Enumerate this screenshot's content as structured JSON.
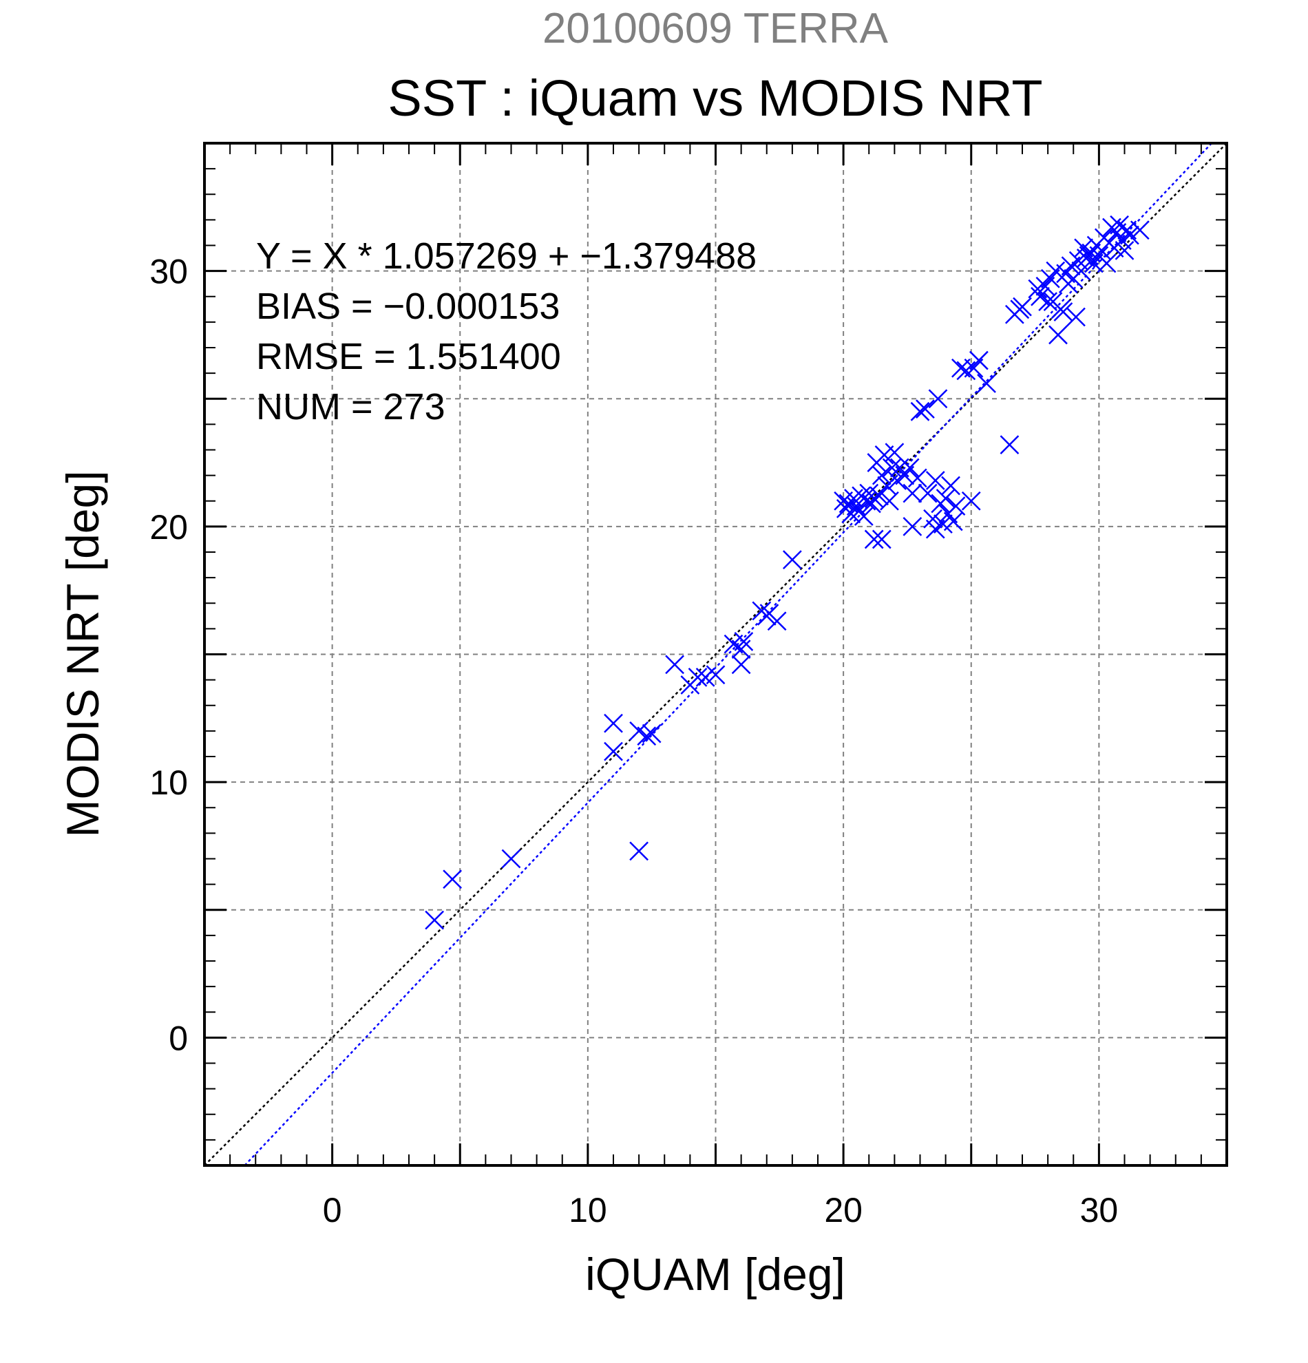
{
  "chart_data": {
    "type": "scatter",
    "suptitle": "20100609 TERRA",
    "title": "SST : iQuam vs MODIS NRT",
    "xlabel": "iQUAM [deg]",
    "ylabel": "MODIS NRT [deg]",
    "xlim": [
      -5,
      35
    ],
    "ylim": [
      -5,
      35
    ],
    "xticks": [
      0,
      10,
      20,
      30
    ],
    "yticks": [
      0,
      10,
      20,
      30
    ],
    "grid": true,
    "stats": [
      "Y = X * 1.057269 + −1.379488",
      "BIAS = −0.000153",
      "RMSE = 1.551400",
      "NUM = 273"
    ],
    "marker": "x",
    "point_color": "#0000ff",
    "lines": [
      {
        "kind": "identity",
        "slope": 1,
        "intercept": 0,
        "color": "#000000",
        "style": "dotted"
      },
      {
        "kind": "regression",
        "slope": 1.057269,
        "intercept": -1.379488,
        "color": "#0000ff",
        "style": "dotted"
      }
    ],
    "points": [
      [
        4.0,
        4.6
      ],
      [
        4.7,
        6.2
      ],
      [
        7.0,
        7.0
      ],
      [
        11.0,
        12.3
      ],
      [
        11.0,
        11.2
      ],
      [
        12.0,
        7.3
      ],
      [
        12.0,
        12.0
      ],
      [
        12.3,
        11.8
      ],
      [
        12.5,
        11.9
      ],
      [
        13.4,
        14.6
      ],
      [
        14.0,
        13.8
      ],
      [
        14.3,
        14.1
      ],
      [
        14.6,
        14.1
      ],
      [
        15.0,
        14.2
      ],
      [
        15.7,
        15.4
      ],
      [
        16.0,
        15.2
      ],
      [
        16.0,
        14.6
      ],
      [
        16.1,
        15.5
      ],
      [
        16.8,
        16.7
      ],
      [
        17.0,
        16.5
      ],
      [
        17.1,
        16.6
      ],
      [
        17.4,
        16.3
      ],
      [
        18.0,
        18.7
      ],
      [
        20.0,
        21.0
      ],
      [
        20.1,
        20.7
      ],
      [
        20.2,
        20.9
      ],
      [
        20.3,
        20.5
      ],
      [
        20.4,
        21.1
      ],
      [
        20.5,
        20.8
      ],
      [
        20.6,
        20.6
      ],
      [
        20.7,
        21.2
      ],
      [
        20.8,
        20.4
      ],
      [
        20.9,
        21.0
      ],
      [
        21.0,
        21.3
      ],
      [
        21.1,
        20.9
      ],
      [
        21.2,
        21.1
      ],
      [
        21.2,
        19.5
      ],
      [
        21.3,
        22.5
      ],
      [
        21.4,
        21.2
      ],
      [
        21.5,
        22.0
      ],
      [
        21.5,
        19.5
      ],
      [
        21.6,
        22.8
      ],
      [
        21.7,
        21.6
      ],
      [
        21.8,
        21.0
      ],
      [
        21.9,
        22.3
      ],
      [
        22.0,
        22.9
      ],
      [
        22.1,
        21.8
      ],
      [
        22.2,
        22.3
      ],
      [
        22.4,
        22.0
      ],
      [
        22.6,
        22.3
      ],
      [
        22.7,
        21.3
      ],
      [
        22.7,
        20.0
      ],
      [
        22.9,
        21.9
      ],
      [
        23.0,
        24.5
      ],
      [
        23.2,
        24.6
      ],
      [
        23.3,
        21.3
      ],
      [
        23.5,
        20.3
      ],
      [
        23.6,
        19.9
      ],
      [
        23.6,
        21.8
      ],
      [
        23.7,
        25.0
      ],
      [
        23.8,
        20.9
      ],
      [
        23.9,
        20.1
      ],
      [
        24.0,
        21.1
      ],
      [
        24.1,
        20.5
      ],
      [
        24.2,
        21.6
      ],
      [
        24.3,
        20.2
      ],
      [
        24.4,
        20.8
      ],
      [
        24.6,
        26.2
      ],
      [
        24.8,
        26.1
      ],
      [
        25.0,
        21.0
      ],
      [
        25.1,
        26.2
      ],
      [
        25.3,
        26.5
      ],
      [
        25.6,
        25.6
      ],
      [
        26.5,
        23.2
      ],
      [
        26.7,
        28.3
      ],
      [
        26.9,
        28.5
      ],
      [
        27.0,
        28.6
      ],
      [
        27.6,
        29.3
      ],
      [
        27.7,
        29.0
      ],
      [
        27.9,
        29.4
      ],
      [
        28.0,
        28.8
      ],
      [
        28.1,
        29.7
      ],
      [
        28.2,
        28.8
      ],
      [
        28.3,
        30.0
      ],
      [
        28.4,
        27.5
      ],
      [
        28.5,
        28.5
      ],
      [
        28.6,
        28.4
      ],
      [
        28.7,
        29.9
      ],
      [
        28.8,
        29.5
      ],
      [
        28.9,
        30.2
      ],
      [
        29.0,
        29.7
      ],
      [
        29.1,
        28.2
      ],
      [
        29.2,
        30.4
      ],
      [
        29.3,
        30.0
      ],
      [
        29.4,
        30.9
      ],
      [
        29.5,
        30.5
      ],
      [
        29.6,
        30.6
      ],
      [
        29.7,
        30.7
      ],
      [
        29.8,
        30.3
      ],
      [
        29.9,
        31.0
      ],
      [
        30.0,
        30.6
      ],
      [
        30.1,
        30.8
      ],
      [
        30.2,
        31.3
      ],
      [
        30.3,
        30.3
      ],
      [
        30.4,
        31.1
      ],
      [
        30.5,
        31.7
      ],
      [
        30.6,
        30.9
      ],
      [
        30.7,
        31.5
      ],
      [
        30.8,
        31.8
      ],
      [
        30.9,
        31.2
      ],
      [
        31.0,
        30.8
      ],
      [
        31.1,
        31.6
      ],
      [
        31.2,
        31.4
      ],
      [
        31.6,
        31.6
      ]
    ]
  }
}
